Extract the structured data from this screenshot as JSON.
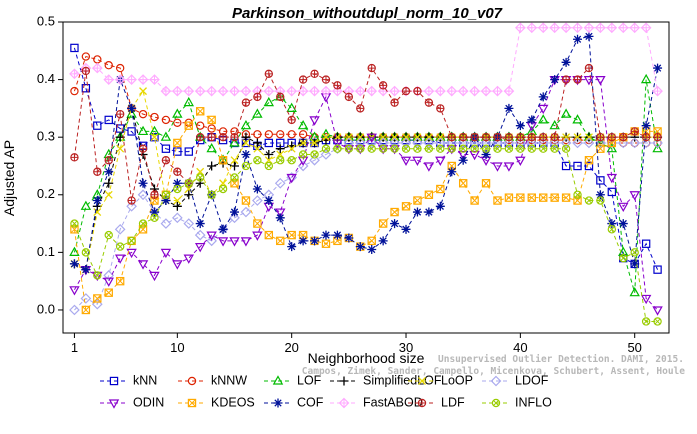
{
  "chart_data": {
    "type": "line",
    "title": "Parkinson_withoutdupl_norm_10_v07",
    "xlabel": "Neighborhood size",
    "ylabel": "Adjusted AP",
    "xlim": [
      0,
      53
    ],
    "ylim": [
      -0.04,
      0.5
    ],
    "xticks": [
      1,
      10,
      20,
      30,
      40,
      50
    ],
    "yticks": [
      0.0,
      0.1,
      0.2,
      0.3,
      0.4,
      0.5
    ],
    "ytick_labels": [
      "0.0",
      "0.1",
      "0.2",
      "0.3",
      "0.4",
      "0.5"
    ],
    "grid": false,
    "legend_position": "bottom",
    "credit": "Campos, Zimek, Sander, Campello, Micenkova, Schubert, Assent, Houle",
    "credit_line1": "Unsupervised Outlier Detection. DAMI, 2015.",
    "x": [
      1,
      2,
      3,
      4,
      5,
      6,
      7,
      8,
      9,
      10,
      11,
      12,
      13,
      14,
      15,
      16,
      17,
      18,
      19,
      20,
      21,
      22,
      23,
      24,
      25,
      26,
      27,
      28,
      29,
      30,
      31,
      32,
      33,
      34,
      35,
      36,
      37,
      38,
      39,
      40,
      41,
      42,
      43,
      44,
      45,
      46,
      47,
      48,
      49,
      50,
      51,
      52
    ],
    "series": [
      {
        "name": "kNN",
        "color": "#0000cc",
        "marker": "square",
        "values": [
          0.455,
          0.385,
          0.32,
          0.33,
          0.315,
          0.31,
          0.285,
          0.3,
          0.28,
          0.275,
          0.275,
          0.295,
          0.3,
          0.295,
          0.29,
          0.29,
          0.285,
          0.29,
          0.29,
          0.29,
          0.29,
          0.29,
          0.295,
          0.295,
          0.295,
          0.295,
          0.295,
          0.295,
          0.295,
          0.295,
          0.295,
          0.295,
          0.29,
          0.29,
          0.29,
          0.29,
          0.29,
          0.29,
          0.29,
          0.29,
          0.29,
          0.29,
          0.29,
          0.25,
          0.25,
          0.25,
          0.225,
          0.205,
          0.09,
          0.08,
          0.115,
          0.07
        ]
      },
      {
        "name": "kNNW",
        "color": "#dd2200",
        "marker": "circle",
        "values": [
          0.38,
          0.44,
          0.435,
          0.425,
          0.42,
          0.35,
          0.34,
          0.335,
          0.33,
          0.325,
          0.325,
          0.32,
          0.315,
          0.31,
          0.31,
          0.305,
          0.305,
          0.305,
          0.305,
          0.305,
          0.305,
          0.3,
          0.3,
          0.3,
          0.3,
          0.3,
          0.3,
          0.3,
          0.3,
          0.3,
          0.3,
          0.3,
          0.3,
          0.3,
          0.3,
          0.3,
          0.3,
          0.3,
          0.295,
          0.295,
          0.295,
          0.295,
          0.295,
          0.295,
          0.295,
          0.295,
          0.295,
          0.29,
          0.29,
          0.29,
          0.29,
          0.29
        ]
      },
      {
        "name": "LOF",
        "color": "#00bb00",
        "marker": "triangle-up",
        "values": [
          0.1,
          0.18,
          0.2,
          0.27,
          0.3,
          0.34,
          0.31,
          0.31,
          0.3,
          0.34,
          0.36,
          0.3,
          0.28,
          0.26,
          0.29,
          0.32,
          0.34,
          0.36,
          0.37,
          0.35,
          0.32,
          0.3,
          0.305,
          0.3,
          0.3,
          0.3,
          0.3,
          0.3,
          0.3,
          0.3,
          0.3,
          0.3,
          0.3,
          0.3,
          0.3,
          0.3,
          0.3,
          0.3,
          0.3,
          0.3,
          0.31,
          0.33,
          0.32,
          0.34,
          0.33,
          0.3,
          0.29,
          0.28,
          0.1,
          0.03,
          0.4,
          0.28
        ]
      },
      {
        "name": "SimplifiedLOF",
        "color": "#000000",
        "marker": "plus",
        "values": [
          0.08,
          0.07,
          0.18,
          0.22,
          0.3,
          0.35,
          0.27,
          0.21,
          0.19,
          0.18,
          0.2,
          0.22,
          0.25,
          0.255,
          0.25,
          0.3,
          0.29,
          0.27,
          0.28,
          0.285,
          0.29,
          0.29,
          0.295,
          0.3,
          0.3,
          0.3,
          0.3,
          0.3,
          0.3,
          0.3,
          0.3,
          0.3,
          0.3,
          0.3,
          0.3,
          0.3,
          0.3,
          0.3,
          0.3,
          0.3,
          0.3,
          0.3,
          0.3,
          0.3,
          0.3,
          0.3,
          0.3,
          0.3,
          0.3,
          0.3,
          0.3,
          0.3
        ]
      },
      {
        "name": "LoOP",
        "color": "#e8d800",
        "marker": "x",
        "values": [
          0.08,
          0.07,
          0.17,
          0.2,
          0.28,
          0.35,
          0.38,
          0.3,
          0.19,
          0.19,
          0.21,
          0.24,
          0.2,
          0.22,
          0.26,
          0.29,
          0.28,
          0.26,
          0.27,
          0.28,
          0.29,
          0.29,
          0.3,
          0.3,
          0.3,
          0.3,
          0.3,
          0.3,
          0.3,
          0.3,
          0.3,
          0.3,
          0.3,
          0.3,
          0.3,
          0.3,
          0.3,
          0.3,
          0.3,
          0.3,
          0.3,
          0.3,
          0.3,
          0.3,
          0.3,
          0.3,
          0.3,
          0.3,
          0.3,
          0.31,
          0.3,
          0.3
        ]
      },
      {
        "name": "LDOF",
        "color": "#aaaaee",
        "marker": "diamond",
        "values": [
          0.0,
          0.02,
          0.01,
          0.06,
          0.14,
          0.18,
          0.2,
          0.17,
          0.15,
          0.16,
          0.15,
          0.13,
          0.12,
          0.14,
          0.16,
          0.17,
          0.19,
          0.2,
          0.22,
          0.23,
          0.25,
          0.26,
          0.27,
          0.28,
          0.29,
          0.29,
          0.29,
          0.29,
          0.29,
          0.29,
          0.29,
          0.29,
          0.29,
          0.29,
          0.29,
          0.29,
          0.29,
          0.29,
          0.29,
          0.29,
          0.29,
          0.29,
          0.29,
          0.29,
          0.29,
          0.29,
          0.29,
          0.29,
          0.29,
          0.29,
          0.29,
          0.29
        ]
      },
      {
        "name": "ODIN",
        "color": "#8800cc",
        "marker": "triangle-down",
        "values": [
          0.035,
          0.07,
          0.06,
          0.05,
          0.09,
          0.1,
          0.08,
          0.06,
          0.1,
          0.08,
          0.09,
          0.11,
          0.13,
          0.12,
          0.12,
          0.12,
          0.13,
          0.18,
          0.17,
          0.23,
          0.26,
          0.33,
          0.37,
          0.29,
          0.28,
          0.28,
          0.3,
          0.28,
          0.28,
          0.26,
          0.26,
          0.25,
          0.26,
          0.28,
          0.27,
          0.27,
          0.26,
          0.25,
          0.25,
          0.26,
          0.32,
          0.35,
          0.4,
          0.4,
          0.4,
          0.4,
          0.4,
          0.23,
          0.18,
          0.2,
          0.02,
          0.0
        ]
      },
      {
        "name": "KDEOS",
        "color": "#ffaa00",
        "marker": "square-filled",
        "values": [
          0.14,
          0.0,
          0.02,
          0.03,
          0.05,
          0.12,
          0.14,
          0.19,
          0.2,
          0.29,
          0.32,
          0.345,
          0.33,
          0.26,
          0.22,
          0.19,
          0.15,
          0.13,
          0.12,
          0.13,
          0.13,
          0.12,
          0.115,
          0.12,
          0.125,
          0.11,
          0.12,
          0.15,
          0.17,
          0.18,
          0.19,
          0.2,
          0.21,
          0.25,
          0.22,
          0.19,
          0.22,
          0.19,
          0.195,
          0.195,
          0.195,
          0.195,
          0.195,
          0.195,
          0.19,
          0.26,
          0.28,
          0.29,
          0.3,
          0.31,
          0.31,
          0.31
        ]
      },
      {
        "name": "COF",
        "color": "#001199",
        "marker": "asterisk",
        "values": [
          0.08,
          0.07,
          0.19,
          0.24,
          0.4,
          0.35,
          0.22,
          0.17,
          0.19,
          0.22,
          0.22,
          0.15,
          0.2,
          0.14,
          0.17,
          0.27,
          0.21,
          0.19,
          0.16,
          0.11,
          0.12,
          0.12,
          0.13,
          0.13,
          0.125,
          0.11,
          0.105,
          0.12,
          0.15,
          0.14,
          0.17,
          0.17,
          0.18,
          0.24,
          0.26,
          0.3,
          0.27,
          0.3,
          0.35,
          0.32,
          0.33,
          0.37,
          0.4,
          0.43,
          0.47,
          0.475,
          0.2,
          0.15,
          0.15,
          0.08,
          0.32,
          0.42
        ]
      },
      {
        "name": "FastABOD",
        "color": "#ffaaff",
        "marker": "diamond-plus",
        "values": [
          0.41,
          0.42,
          0.42,
          0.4,
          0.4,
          0.4,
          0.4,
          0.4,
          0.38,
          0.38,
          0.38,
          0.38,
          0.38,
          0.38,
          0.38,
          0.38,
          0.38,
          0.38,
          0.38,
          0.38,
          0.38,
          0.38,
          0.38,
          0.38,
          0.38,
          0.38,
          0.38,
          0.38,
          0.38,
          0.38,
          0.38,
          0.38,
          0.38,
          0.38,
          0.38,
          0.38,
          0.38,
          0.38,
          0.38,
          0.49,
          0.49,
          0.49,
          0.49,
          0.49,
          0.49,
          0.49,
          0.49,
          0.49,
          0.49,
          0.49,
          0.49,
          0.38
        ]
      },
      {
        "name": "LDF",
        "color": "#bb2222",
        "marker": "circle-plus",
        "values": [
          0.265,
          0.415,
          0.24,
          0.26,
          0.34,
          0.19,
          0.28,
          0.2,
          0.26,
          0.24,
          0.22,
          0.3,
          0.3,
          0.3,
          0.3,
          0.36,
          0.37,
          0.41,
          0.37,
          0.33,
          0.4,
          0.41,
          0.4,
          0.39,
          0.37,
          0.35,
          0.42,
          0.39,
          0.36,
          0.38,
          0.38,
          0.36,
          0.35,
          0.3,
          0.3,
          0.3,
          0.3,
          0.3,
          0.3,
          0.3,
          0.3,
          0.3,
          0.3,
          0.4,
          0.4,
          0.42,
          0.3,
          0.3,
          0.3,
          0.31,
          0.3,
          0.3
        ]
      },
      {
        "name": "INFLO",
        "color": "#99cc00",
        "marker": "circle-x",
        "values": [
          0.15,
          0.1,
          0.06,
          0.13,
          0.11,
          0.12,
          0.15,
          0.16,
          0.2,
          0.21,
          0.22,
          0.23,
          0.2,
          0.21,
          0.23,
          0.25,
          0.26,
          0.25,
          0.26,
          0.26,
          0.27,
          0.27,
          0.28,
          0.28,
          0.28,
          0.28,
          0.28,
          0.28,
          0.28,
          0.28,
          0.28,
          0.28,
          0.28,
          0.28,
          0.28,
          0.28,
          0.28,
          0.28,
          0.28,
          0.28,
          0.28,
          0.28,
          0.28,
          0.28,
          0.2,
          0.19,
          0.19,
          0.14,
          0.09,
          0.1,
          -0.02,
          -0.02
        ]
      }
    ],
    "legend_order": [
      "kNN",
      "kNNW",
      "LOF",
      "SimplifiedLOF",
      "LoOP",
      "LDOF",
      "ODIN",
      "KDEOS",
      "COF",
      "FastABOD",
      "LDF",
      "INFLO"
    ]
  }
}
